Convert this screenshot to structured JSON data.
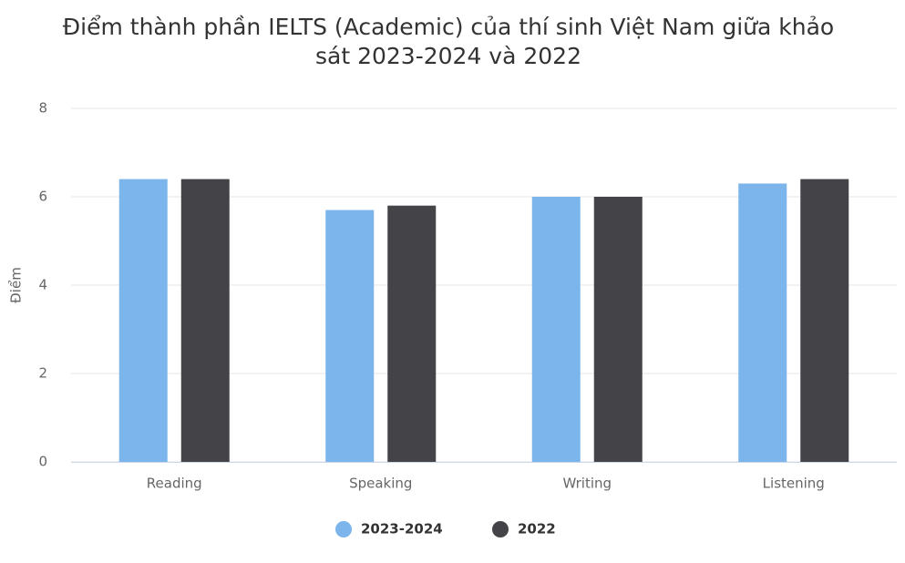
{
  "chart_data": {
    "type": "bar",
    "title": "Điểm thành phần IELTS (Academic) của thí sinh Việt Nam giữa khảo sát 2023-2024 và 2022",
    "y_label": "Điểm",
    "categories": [
      "Reading",
      "Speaking",
      "Writing",
      "Listening"
    ],
    "series": [
      {
        "name": "2023-2024",
        "color": "#7cb5ec",
        "values": [
          6.4,
          5.7,
          6.0,
          6.3
        ]
      },
      {
        "name": "2022",
        "color": "#434348",
        "values": [
          6.4,
          5.8,
          6.0,
          6.4
        ]
      }
    ],
    "ylim": [
      0,
      8
    ],
    "yticks": [
      0,
      2,
      4,
      6,
      8
    ],
    "grid": true,
    "legend": "bottom"
  }
}
